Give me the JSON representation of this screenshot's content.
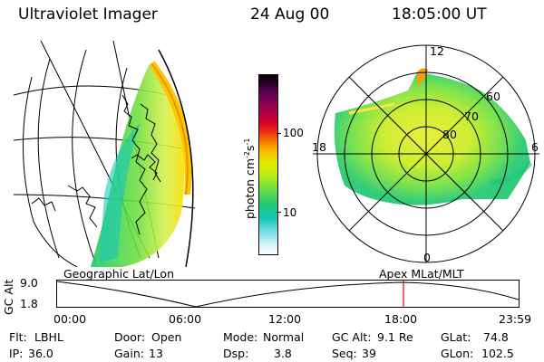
{
  "header": {
    "instrument": "Ultraviolet Imager",
    "date": "24 Aug 00",
    "time": "18:05:00 UT"
  },
  "colorbar": {
    "unit_label": "photon cm",
    "unit_sup1": "-2",
    "unit_mid": "s",
    "unit_sup2": "-1",
    "ticks": [
      "100",
      "10"
    ],
    "colors": [
      "#000000",
      "#3a003a",
      "#6e005a",
      "#a8004a",
      "#d8002a",
      "#f04010",
      "#f88800",
      "#f8c000",
      "#e8e800",
      "#b8ec18",
      "#70e040",
      "#20c870",
      "#18c8b8",
      "#80e0e8",
      "#d8f4f8",
      "#ffffff"
    ]
  },
  "left_panel": {
    "label": "Geographic Lat/Lon"
  },
  "right_panel": {
    "label": "Apex MLat/MLT",
    "mlt_labels": [
      "12",
      "18",
      "6",
      "0"
    ],
    "lat_labels": [
      "60",
      "70",
      "80"
    ]
  },
  "altitude_plot": {
    "ylabel": "GC Alt",
    "yticks": [
      "9.0",
      "1.8"
    ],
    "xticks": [
      "00:00",
      "06:00",
      "12:00",
      "18:00",
      "23:59"
    ],
    "marker_color": "#e00000"
  },
  "info": {
    "flt_label": "Flt:",
    "flt_value": "LBHL",
    "ip_label": "IP:",
    "ip_value": "36.0",
    "door_label": "Door:",
    "door_value": "Open",
    "gain_label": "Gain:",
    "gain_value": "13",
    "mode_label": "Mode:",
    "mode_value": "Normal",
    "dsp_label": "Dsp:",
    "dsp_value": "3.8",
    "gcalt_label": "GC Alt:",
    "gcalt_value": "9.1 Re",
    "seq_label": "Seq:",
    "seq_value": "39",
    "glat_label": "GLat:",
    "glat_value": "74.8",
    "glon_label": "GLon:",
    "glon_value": "102.5"
  }
}
